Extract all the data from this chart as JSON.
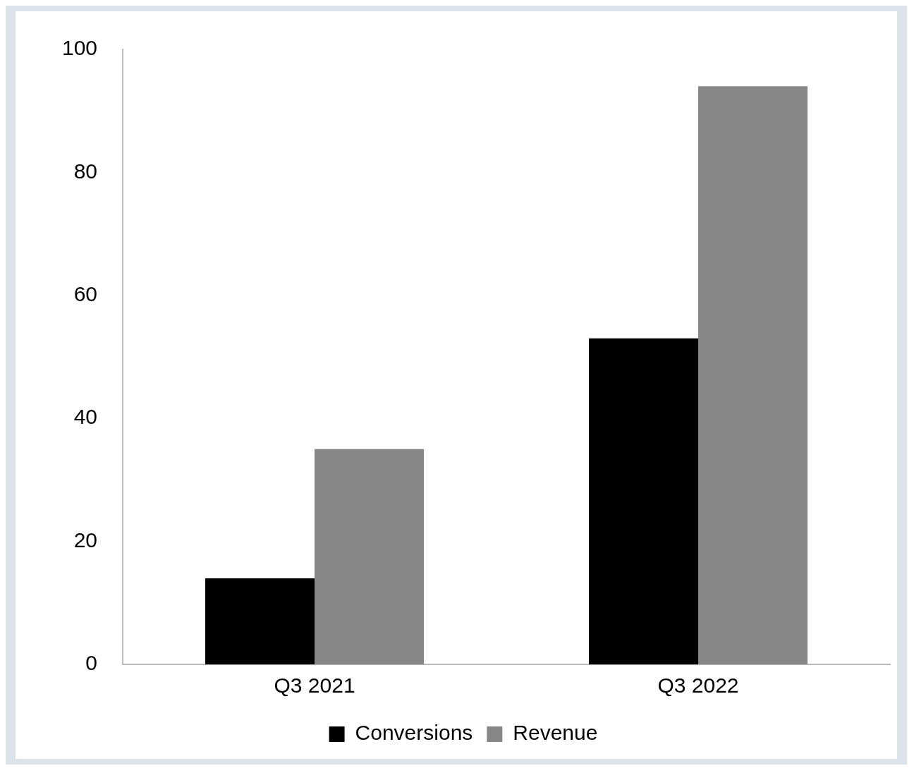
{
  "chart_data": {
    "type": "bar",
    "categories": [
      "Q3 2021",
      "Q3 2022"
    ],
    "series": [
      {
        "name": "Conversions",
        "color": "#000000",
        "values": [
          14,
          53
        ]
      },
      {
        "name": "Revenue",
        "color": "#878787",
        "values": [
          35,
          94
        ]
      }
    ],
    "ylim": [
      0,
      100
    ],
    "yticks": [
      0,
      20,
      40,
      60,
      80,
      100
    ],
    "grid": false,
    "legend": "bottom"
  }
}
